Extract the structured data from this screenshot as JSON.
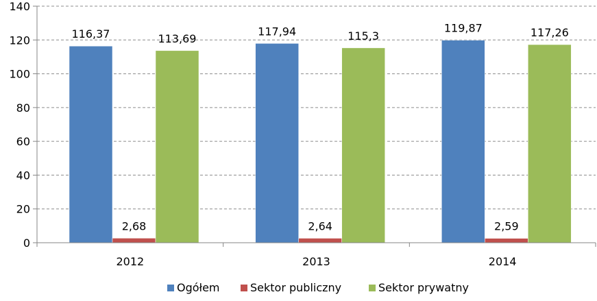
{
  "chart_data": {
    "type": "bar",
    "categories": [
      "2012",
      "2013",
      "2014"
    ],
    "series": [
      {
        "name": "Ogółem",
        "color": "#4f81bd",
        "values": [
          116.37,
          117.94,
          119.87
        ],
        "labels": [
          "116,37",
          "117,94",
          "119,87"
        ]
      },
      {
        "name": "Sektor publiczny",
        "color": "#c0504d",
        "values": [
          2.68,
          2.64,
          2.59
        ],
        "labels": [
          "2,68",
          "2,64",
          "2,59"
        ]
      },
      {
        "name": "Sektor prywatny",
        "color": "#9bbb59",
        "values": [
          113.69,
          115.3,
          117.26
        ],
        "labels": [
          "113,69",
          "115,3",
          "117,26"
        ]
      }
    ],
    "ylim": [
      0,
      140
    ],
    "yticks": [
      0,
      20,
      40,
      60,
      80,
      100,
      120,
      140
    ],
    "grid": "horizontal dashed",
    "legend_position": "bottom",
    "title": "",
    "xlabel": "",
    "ylabel": ""
  }
}
